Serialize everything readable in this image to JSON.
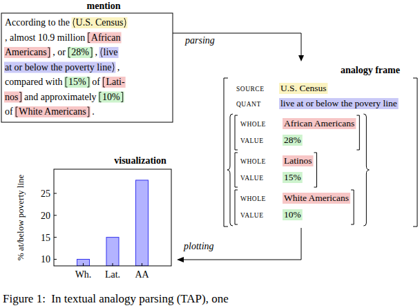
{
  "chart_data": {
    "type": "bar",
    "title": "visualization",
    "ylabel": "% at/below poverty line",
    "categories": [
      "Wh.",
      "Lat.",
      "AA"
    ],
    "values": [
      10,
      15,
      28
    ],
    "color": "#b3b3ff",
    "ylim": [
      8.5,
      30.5
    ],
    "yticks": [
      10,
      15,
      20,
      25
    ],
    "grid": false
  },
  "diagram": {
    "mention": {
      "title": "mention",
      "lines": [
        [
          {
            "text": "According to the "
          },
          {
            "text": "U.S. Census",
            "role": "source"
          }
        ],
        [
          {
            "text": ", almost 10.9 million "
          },
          {
            "text": "African",
            "role": "whole"
          }
        ],
        [
          {
            "text": "Americans",
            "role": "whole"
          },
          {
            "text": " , or "
          },
          {
            "text": "28%",
            "role": "value"
          },
          {
            "text": " , "
          },
          {
            "text": "live",
            "role": "quant"
          }
        ],
        [
          {
            "text": "at or below the poverty line",
            "role": "quant"
          },
          {
            "text": " ,"
          }
        ],
        [
          {
            "text": "compared with "
          },
          {
            "text": "15%",
            "role": "value"
          },
          {
            "text": " of "
          },
          {
            "text": "Lati-",
            "role": "whole"
          }
        ],
        [
          {
            "text": "nos",
            "role": "whole"
          },
          {
            "text": " and approximately "
          },
          {
            "text": "10%",
            "role": "value"
          }
        ],
        [
          {
            "text": "of "
          },
          {
            "text": "White Americans",
            "role": "whole"
          },
          {
            "text": " ."
          }
        ]
      ]
    },
    "frame": {
      "title": "analogy frame",
      "source": {
        "label": "SOURCE",
        "text": "U.S. Census"
      },
      "quant": {
        "label": "QUANT",
        "text": "live at or below the povery line"
      },
      "items": [
        {
          "whole_label": "WHOLE",
          "whole": "African Americans",
          "value_label": "VALUE",
          "value": "28%"
        },
        {
          "whole_label": "WHOLE",
          "whole": "Latinos",
          "value_label": "VALUE",
          "value": "15%"
        },
        {
          "whole_label": "WHOLE",
          "whole": "White Americans",
          "value_label": "VALUE",
          "value": "10%"
        }
      ]
    },
    "arrows": {
      "parsing": "parsing",
      "plotting": "plotting"
    },
    "caption": "Figure 1:  In textual analogy parsing (TAP), one"
  }
}
